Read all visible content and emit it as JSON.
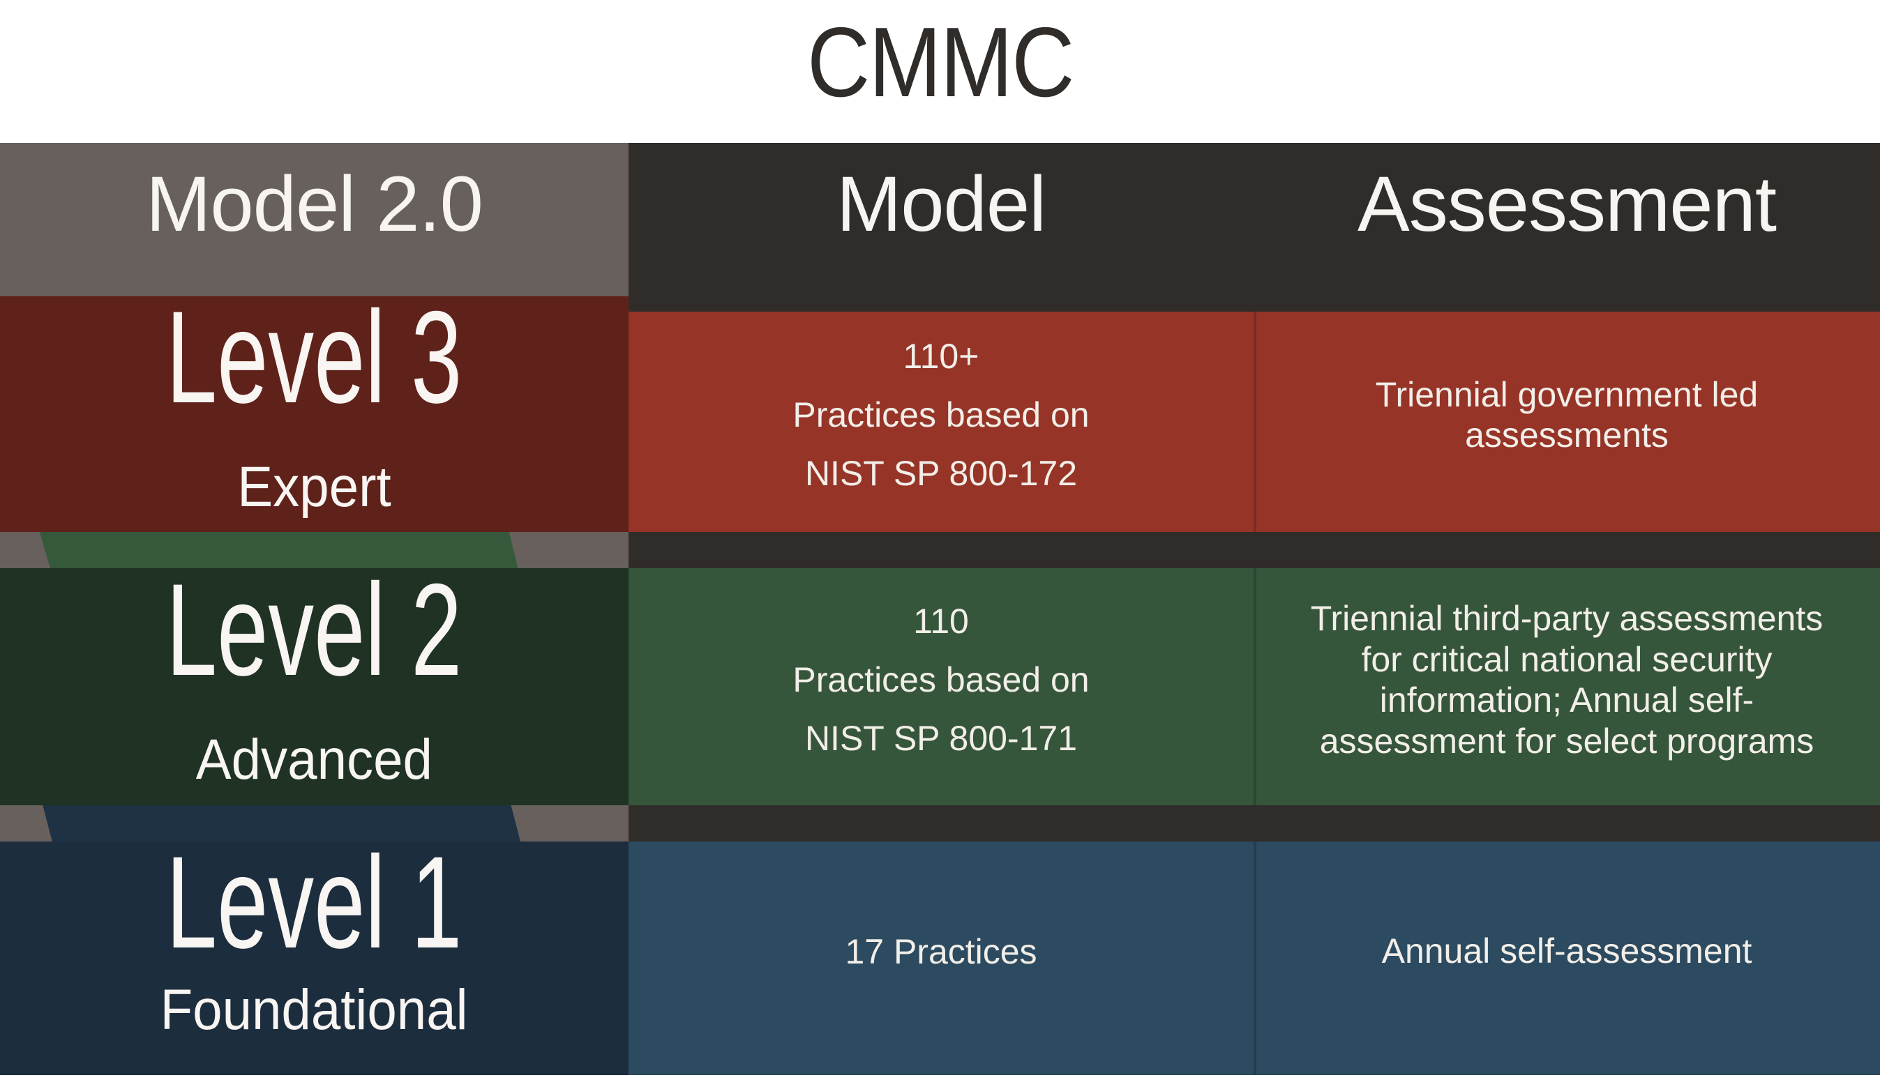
{
  "title": "CMMC",
  "columns": {
    "left_header": "Model 2.0",
    "model_header": "Model",
    "assessment_header": "Assessment"
  },
  "levels": [
    {
      "name": "Level 3",
      "tier": "Expert",
      "model_lines": [
        "110+",
        "Practices based on",
        "NIST SP 800-172"
      ],
      "assessment_lines": [
        "Triennial government led",
        "assessments"
      ]
    },
    {
      "name": "Level 2",
      "tier": "Advanced",
      "model_lines": [
        "110",
        "Practices based on",
        "NIST SP 800-171"
      ],
      "assessment_lines": [
        "Triennial third-party assessments",
        "for critical national security",
        "information; Annual self-",
        "assessment for select programs"
      ]
    },
    {
      "name": "Level 1",
      "tier": "Foundational",
      "model_lines": [
        "17 Practices"
      ],
      "assessment_lines": [
        "Annual self-assessment"
      ]
    }
  ],
  "colors": {
    "title_ink": "#302C2A",
    "header_gray": "#67605C",
    "header_dark": "#302C29",
    "level3": "#963428",
    "level3_dark": "#5F221A",
    "level2": "#36563C",
    "level2_dark": "#1F3224",
    "level2_mid_tone": "#36583B",
    "level1": "#2D4B60",
    "level1_dark": "#1C2D3E",
    "level1_mid_tone": "#1F3244"
  }
}
